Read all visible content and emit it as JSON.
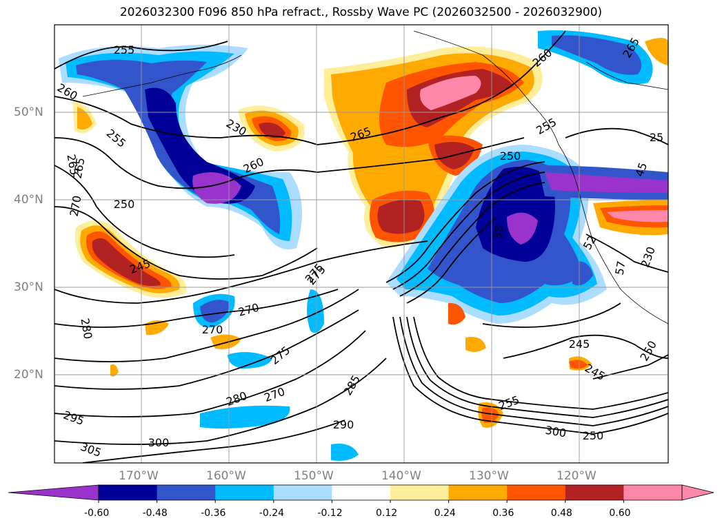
{
  "title": "2026032300 F096 850 hPa refract., Rossby Wave PC (2026032500 - 2026032900)",
  "latitude_labels": [
    "50°N",
    "40°N",
    "30°N",
    "20°N"
  ],
  "longitude_labels": [
    "170°W",
    "160°W",
    "150°W",
    "140°W",
    "130°W",
    "120°W"
  ],
  "contour_labels": [
    "255",
    "260",
    "255",
    "230",
    "265",
    "260",
    "250",
    "245",
    "275",
    "270",
    "270",
    "280",
    "275",
    "280",
    "270",
    "285",
    "290",
    "295",
    "300",
    "305",
    "265",
    "260",
    "265",
    "255",
    "250",
    "245",
    "245",
    "250",
    "230",
    "255",
    "35",
    "25",
    "45",
    "265",
    "270",
    "275",
    "52",
    "57",
    "300",
    "250"
  ],
  "colorbar": {
    "ticks": [
      "-0.60",
      "-0.48",
      "-0.36",
      "-0.24",
      "-0.12",
      "0.12",
      "0.24",
      "0.36",
      "0.48",
      "0.60"
    ],
    "colors": [
      "#9933cc",
      "#000099",
      "#3355cc",
      "#00bbff",
      "#aaddff",
      "#ffffff",
      "#ffee99",
      "#ffaa00",
      "#ff5500",
      "#b22222",
      "#ff88aa"
    ],
    "extend": "both"
  }
}
